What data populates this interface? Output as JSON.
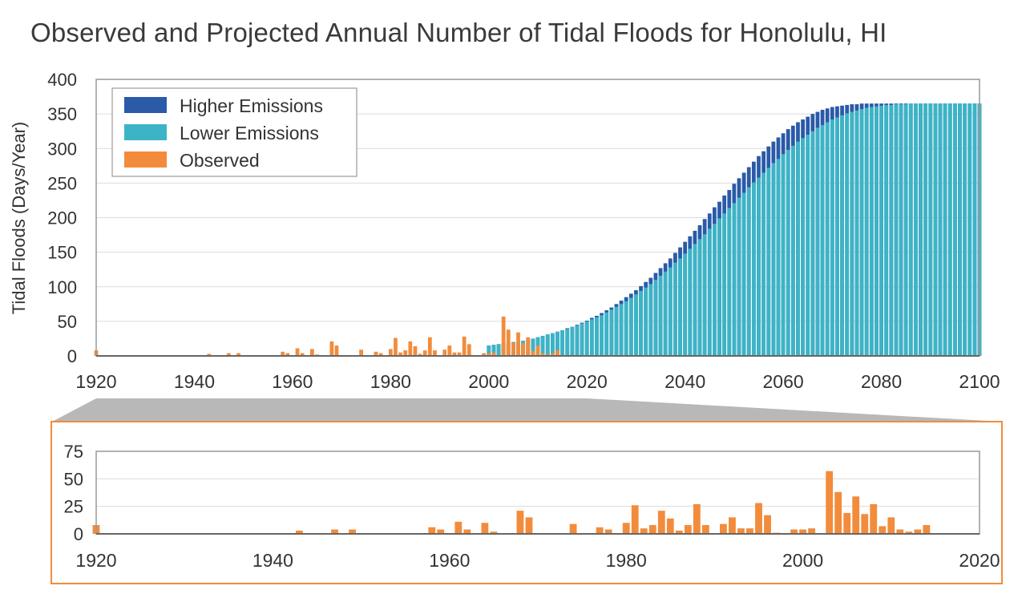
{
  "title": "Observed and Projected Annual Number of Tidal Floods for Honolulu, HI",
  "colors": {
    "higher": "#2a5aa8",
    "lower": "#3cb4c6",
    "observed": "#f28c3c",
    "grid": "#dcdcdc",
    "axis": "#999999",
    "zoom_band": "#b8b8b8"
  },
  "chart_data": [
    {
      "type": "bar",
      "title": "Observed and Projected Annual Number of Tidal Floods for Honolulu, HI",
      "ylabel": "Tidal Floods (Days/Year)",
      "xlabel": "",
      "xlim": [
        1920,
        2100
      ],
      "ylim": [
        0,
        400
      ],
      "x_ticks": [
        1920,
        1940,
        1960,
        1980,
        2000,
        2020,
        2040,
        2060,
        2080,
        2100
      ],
      "y_ticks": [
        0,
        50,
        100,
        150,
        200,
        250,
        300,
        350,
        400
      ],
      "grid": true,
      "legend": {
        "position": "top-left",
        "entries": [
          "Higher Emissions",
          "Lower Emissions",
          "Observed"
        ]
      },
      "series": [
        {
          "name": "Higher Emissions",
          "description_of_years": "2000-2100",
          "x": [
            2000,
            2001,
            2002,
            2003,
            2004,
            2005,
            2006,
            2007,
            2008,
            2009,
            2010,
            2011,
            2012,
            2013,
            2014,
            2015,
            2016,
            2017,
            2018,
            2019,
            2020,
            2021,
            2022,
            2023,
            2024,
            2025,
            2026,
            2027,
            2028,
            2029,
            2030,
            2031,
            2032,
            2033,
            2034,
            2035,
            2036,
            2037,
            2038,
            2039,
            2040,
            2041,
            2042,
            2043,
            2044,
            2045,
            2046,
            2047,
            2048,
            2049,
            2050,
            2051,
            2052,
            2053,
            2054,
            2055,
            2056,
            2057,
            2058,
            2059,
            2060,
            2061,
            2062,
            2063,
            2064,
            2065,
            2066,
            2067,
            2068,
            2069,
            2070,
            2071,
            2072,
            2073,
            2074,
            2075,
            2076,
            2077,
            2078,
            2079,
            2080,
            2081,
            2082,
            2083,
            2084,
            2085,
            2086,
            2087,
            2088,
            2089,
            2090,
            2091,
            2092,
            2093,
            2094,
            2095,
            2096,
            2097,
            2098,
            2099,
            2100
          ],
          "values": [
            15,
            16,
            17,
            18,
            19,
            20,
            21,
            22,
            24,
            25,
            27,
            29,
            31,
            33,
            35,
            37,
            40,
            42,
            45,
            48,
            51,
            55,
            58,
            62,
            66,
            70,
            75,
            80,
            85,
            90,
            95,
            101,
            107,
            113,
            120,
            127,
            134,
            141,
            149,
            157,
            165,
            173,
            181,
            189,
            198,
            206,
            215,
            223,
            232,
            240,
            249,
            257,
            265,
            273,
            281,
            289,
            296,
            303,
            310,
            316,
            322,
            328,
            333,
            338,
            342,
            346,
            350,
            353,
            356,
            358,
            360,
            361,
            362,
            363,
            364,
            364,
            365,
            365,
            365,
            365,
            365,
            365,
            365,
            365,
            365,
            365,
            365,
            365,
            365,
            365,
            365,
            365,
            365,
            365,
            365,
            365,
            365,
            365,
            365,
            365,
            365
          ]
        },
        {
          "name": "Lower Emissions",
          "x": [
            2000,
            2001,
            2002,
            2003,
            2004,
            2005,
            2006,
            2007,
            2008,
            2009,
            2010,
            2011,
            2012,
            2013,
            2014,
            2015,
            2016,
            2017,
            2018,
            2019,
            2020,
            2021,
            2022,
            2023,
            2024,
            2025,
            2026,
            2027,
            2028,
            2029,
            2030,
            2031,
            2032,
            2033,
            2034,
            2035,
            2036,
            2037,
            2038,
            2039,
            2040,
            2041,
            2042,
            2043,
            2044,
            2045,
            2046,
            2047,
            2048,
            2049,
            2050,
            2051,
            2052,
            2053,
            2054,
            2055,
            2056,
            2057,
            2058,
            2059,
            2060,
            2061,
            2062,
            2063,
            2064,
            2065,
            2066,
            2067,
            2068,
            2069,
            2070,
            2071,
            2072,
            2073,
            2074,
            2075,
            2076,
            2077,
            2078,
            2079,
            2080,
            2081,
            2082,
            2083,
            2084,
            2085,
            2086,
            2087,
            2088,
            2089,
            2090,
            2091,
            2092,
            2093,
            2094,
            2095,
            2096,
            2097,
            2098,
            2099,
            2100
          ],
          "values": [
            15,
            16,
            17,
            18,
            19,
            20,
            21,
            22,
            24,
            25,
            27,
            29,
            31,
            33,
            35,
            37,
            39,
            42,
            44,
            47,
            50,
            53,
            56,
            59,
            63,
            67,
            71,
            75,
            79,
            84,
            89,
            94,
            99,
            104,
            110,
            116,
            122,
            128,
            135,
            141,
            148,
            155,
            162,
            169,
            176,
            184,
            191,
            199,
            206,
            214,
            221,
            229,
            236,
            244,
            251,
            258,
            265,
            272,
            279,
            285,
            292,
            298,
            304,
            310,
            315,
            320,
            325,
            330,
            334,
            338,
            342,
            345,
            348,
            351,
            353,
            355,
            357,
            359,
            360,
            361,
            362,
            363,
            363,
            364,
            364,
            364,
            365,
            365,
            365,
            365,
            365,
            365,
            365,
            365,
            365,
            365,
            365,
            365,
            365,
            365,
            365
          ]
        },
        {
          "name": "Observed",
          "x": [
            1920,
            1943,
            1947,
            1949,
            1958,
            1959,
            1961,
            1962,
            1964,
            1965,
            1968,
            1969,
            1974,
            1977,
            1978,
            1980,
            1981,
            1982,
            1983,
            1984,
            1985,
            1986,
            1987,
            1988,
            1989,
            1991,
            1992,
            1993,
            1994,
            1995,
            1996,
            1997,
            1999,
            2000,
            2001,
            2003,
            2004,
            2005,
            2006,
            2007,
            2008,
            2009,
            2010,
            2011,
            2012,
            2013,
            2014
          ],
          "values": [
            8,
            3,
            4,
            4,
            6,
            4,
            11,
            4,
            10,
            2,
            21,
            15,
            9,
            6,
            4,
            10,
            26,
            5,
            8,
            21,
            14,
            3,
            8,
            27,
            8,
            9,
            15,
            5,
            5,
            28,
            17,
            1,
            4,
            4,
            5,
            57,
            38,
            19,
            34,
            18,
            27,
            7,
            15,
            4,
            2,
            4,
            8
          ]
        }
      ]
    },
    {
      "type": "bar",
      "description": "zoomed observed",
      "xlim": [
        1920,
        2020
      ],
      "ylim": [
        0,
        75
      ],
      "x_ticks": [
        1920,
        1940,
        1960,
        1980,
        2000,
        2020
      ],
      "y_ticks": [
        0,
        25,
        50,
        75
      ],
      "grid": true,
      "series": [
        {
          "name": "Observed",
          "x": [
            1920,
            1943,
            1947,
            1949,
            1958,
            1959,
            1961,
            1962,
            1964,
            1965,
            1968,
            1969,
            1974,
            1977,
            1978,
            1980,
            1981,
            1982,
            1983,
            1984,
            1985,
            1986,
            1987,
            1988,
            1989,
            1991,
            1992,
            1993,
            1994,
            1995,
            1996,
            1997,
            1999,
            2000,
            2001,
            2003,
            2004,
            2005,
            2006,
            2007,
            2008,
            2009,
            2010,
            2011,
            2012,
            2013,
            2014
          ],
          "values": [
            8,
            3,
            4,
            4,
            6,
            4,
            11,
            4,
            10,
            2,
            21,
            15,
            9,
            6,
            4,
            10,
            26,
            5,
            8,
            21,
            14,
            3,
            8,
            27,
            8,
            9,
            15,
            5,
            5,
            28,
            17,
            1,
            4,
            4,
            5,
            57,
            38,
            19,
            34,
            18,
            27,
            7,
            15,
            4,
            2,
            4,
            8
          ]
        }
      ]
    }
  ]
}
